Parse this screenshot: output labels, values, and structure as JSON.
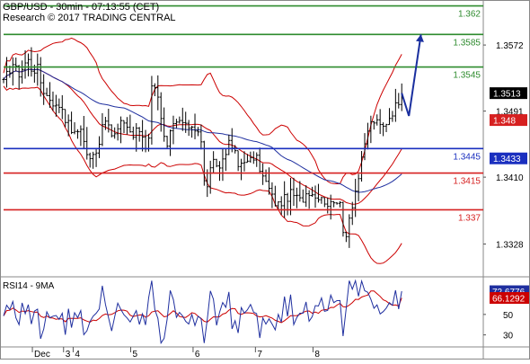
{
  "header": {
    "instrument_line": "GBP/USD - 30min - 07:13:55 (CET)",
    "copyright_line": "Research © 2017 TRADING CENTRAL"
  },
  "colors": {
    "candles": "#000000",
    "bollinger": "#cc0000",
    "moving_average": "#1f2f9f",
    "resistance": "#2e8b2e",
    "pivot": "#1a2fbf",
    "support": "#d62020",
    "projection": "#1a2f9f",
    "rsi": "#1f2f9f",
    "rsi_ma": "#cc0000",
    "price_tag": "#000000",
    "support_tag": "#d62020",
    "pivot_tag": "#1a2fbf",
    "rsi_tag": "#1f2f9f",
    "rsi_ma_tag": "#cc0000"
  },
  "chart_data": [
    {
      "type": "candlestick",
      "title": "GBP/USD - 30min - 07:13:55 (CET)",
      "ylim": [
        1.329,
        1.3625
      ],
      "y_ticks": [
        "1.3572",
        "1.3491",
        "1.3410",
        "1.3328"
      ],
      "x_ticks": [
        "Dec",
        "3",
        "4",
        "5",
        "6",
        "7",
        "8"
      ],
      "x_tick_positions": [
        0.06,
        0.125,
        0.145,
        0.265,
        0.395,
        0.525,
        0.645
      ],
      "current_price": "1.3513",
      "levels": [
        {
          "label": "1.362",
          "value": 1.362,
          "kind": "resistance"
        },
        {
          "label": "1.3585",
          "value": 1.3585,
          "kind": "resistance"
        },
        {
          "label": "1.3545",
          "value": 1.3545,
          "kind": "resistance"
        },
        {
          "label": "1.3445",
          "value": 1.3445,
          "kind": "pivot"
        },
        {
          "label": "1.3415",
          "value": 1.3415,
          "kind": "support"
        },
        {
          "label": "1.337",
          "value": 1.337,
          "kind": "support"
        }
      ],
      "right_tags": [
        {
          "label": "1.3513",
          "value": 1.3513,
          "kind": "price"
        },
        {
          "label": "1.348",
          "value": 1.348,
          "kind": "support_tag"
        },
        {
          "label": "1.3433",
          "value": 1.3433,
          "kind": "pivot_tag"
        }
      ],
      "price_path": [
        [
          0,
          1.3525
        ],
        [
          0.01,
          1.354
        ],
        [
          0.02,
          1.355
        ],
        [
          0.03,
          1.3535
        ],
        [
          0.04,
          1.3545
        ],
        [
          0.05,
          1.3555
        ],
        [
          0.06,
          1.354
        ],
        [
          0.07,
          1.3545
        ],
        [
          0.08,
          1.352
        ],
        [
          0.09,
          1.351
        ],
        [
          0.1,
          1.3505
        ],
        [
          0.11,
          1.3495
        ],
        [
          0.12,
          1.35
        ],
        [
          0.13,
          1.348
        ],
        [
          0.14,
          1.347
        ],
        [
          0.15,
          1.346
        ],
        [
          0.16,
          1.3475
        ],
        [
          0.17,
          1.3445
        ],
        [
          0.18,
          1.343
        ],
        [
          0.19,
          1.344
        ],
        [
          0.2,
          1.3455
        ],
        [
          0.21,
          1.349
        ],
        [
          0.22,
          1.3465
        ],
        [
          0.23,
          1.346
        ],
        [
          0.24,
          1.347
        ],
        [
          0.25,
          1.348
        ],
        [
          0.26,
          1.347
        ],
        [
          0.27,
          1.346
        ],
        [
          0.28,
          1.347
        ],
        [
          0.29,
          1.346
        ],
        [
          0.3,
          1.344
        ],
        [
          0.31,
          1.353
        ],
        [
          0.32,
          1.352
        ],
        [
          0.33,
          1.347
        ],
        [
          0.34,
          1.344
        ],
        [
          0.35,
          1.347
        ],
        [
          0.36,
          1.3475
        ],
        [
          0.37,
          1.348
        ],
        [
          0.38,
          1.347
        ],
        [
          0.39,
          1.3475
        ],
        [
          0.4,
          1.347
        ],
        [
          0.41,
          1.3465
        ],
        [
          0.42,
          1.339
        ],
        [
          0.43,
          1.3415
        ],
        [
          0.44,
          1.343
        ],
        [
          0.45,
          1.342
        ],
        [
          0.46,
          1.344
        ],
        [
          0.47,
          1.345
        ],
        [
          0.48,
          1.3445
        ],
        [
          0.49,
          1.342
        ],
        [
          0.5,
          1.3435
        ],
        [
          0.51,
          1.3425
        ],
        [
          0.52,
          1.3435
        ],
        [
          0.53,
          1.343
        ],
        [
          0.54,
          1.341
        ],
        [
          0.55,
          1.34
        ],
        [
          0.56,
          1.3385
        ],
        [
          0.57,
          1.3375
        ],
        [
          0.58,
          1.338
        ],
        [
          0.59,
          1.3385
        ],
        [
          0.6,
          1.339
        ],
        [
          0.61,
          1.3385
        ],
        [
          0.62,
          1.338
        ],
        [
          0.63,
          1.339
        ],
        [
          0.64,
          1.3395
        ],
        [
          0.65,
          1.3385
        ],
        [
          0.66,
          1.339
        ],
        [
          0.67,
          1.338
        ],
        [
          0.68,
          1.3375
        ],
        [
          0.69,
          1.3385
        ],
        [
          0.7,
          1.338
        ],
        [
          0.71,
          1.333
        ],
        [
          0.72,
          1.336
        ],
        [
          0.73,
          1.3385
        ],
        [
          0.74,
          1.341
        ],
        [
          0.75,
          1.344
        ],
        [
          0.76,
          1.347
        ],
        [
          0.77,
          1.348
        ],
        [
          0.78,
          1.3475
        ],
        [
          0.79,
          1.347
        ],
        [
          0.8,
          1.348
        ],
        [
          0.81,
          1.349
        ],
        [
          0.82,
          1.35
        ],
        [
          0.83,
          1.3513
        ]
      ],
      "projection": [
        [
          0.83,
          1.3513
        ],
        [
          0.845,
          1.3485
        ],
        [
          0.87,
          1.3585
        ]
      ]
    },
    {
      "type": "line",
      "title": "RSI14 - 9MA",
      "ylim": [
        20,
        85
      ],
      "y_ticks": [
        "50",
        "30"
      ],
      "tags": [
        {
          "label": "72.6776",
          "value": 72.6776,
          "kind": "rsi"
        },
        {
          "label": "66.1292",
          "value": 66.1292,
          "kind": "rsi_ma"
        }
      ]
    }
  ]
}
